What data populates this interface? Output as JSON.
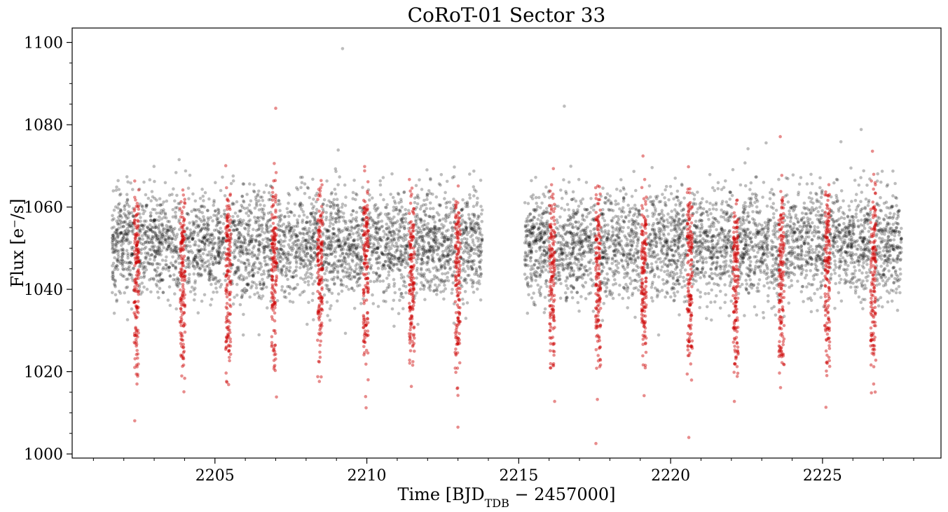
{
  "chart_data": {
    "type": "scatter",
    "title": "CoRoT-01 Sector 33",
    "xlabel": "Time [BJD",
    "xlabel_sub": "TDB",
    "xlabel_tail": " − 2457000]",
    "ylabel": "Flux [e⁻/s]",
    "xlim": [
      2200.3,
      2228.9
    ],
    "ylim": [
      999,
      1103.5
    ],
    "x_ticks": [
      2205,
      2210,
      2215,
      2220,
      2225
    ],
    "x_tick_labels": [
      "2205",
      "2210",
      "2215",
      "2220",
      "2225"
    ],
    "x_minor_step": 1,
    "y_ticks": [
      1000,
      1020,
      1040,
      1060,
      1080,
      1100
    ],
    "y_tick_labels": [
      "1000",
      "1020",
      "1040",
      "1060",
      "1080",
      "1100"
    ],
    "grid": false,
    "legend": "none",
    "series": [
      {
        "role": "out-of-transit",
        "color": "#000000",
        "observation_segments": [
          [
            2201.6,
            2213.8
          ],
          [
            2215.2,
            2227.6
          ]
        ],
        "baseline_flux": 1051,
        "scatter_sigma": 6.5,
        "outliers": [
          {
            "x": 2209.2,
            "y": 1098.5
          },
          {
            "x": 2216.5,
            "y": 1084.5
          }
        ]
      },
      {
        "role": "in-transit",
        "color": "#cc0000",
        "period_days": 1.509,
        "transit_centers": [
          2202.42,
          2203.93,
          2205.44,
          2206.95,
          2208.46,
          2209.97,
          2211.48,
          2212.99,
          2216.1,
          2217.61,
          2219.12,
          2220.63,
          2222.14,
          2223.65,
          2225.16,
          2226.67
        ],
        "transit_depth": 23,
        "minimum_flux": 1004,
        "outliers": [
          {
            "x": 2207.0,
            "y": 1084
          },
          {
            "x": 2220.6,
            "y": 1004
          },
          {
            "x": 2213.0,
            "y": 1006.5
          }
        ]
      }
    ]
  }
}
